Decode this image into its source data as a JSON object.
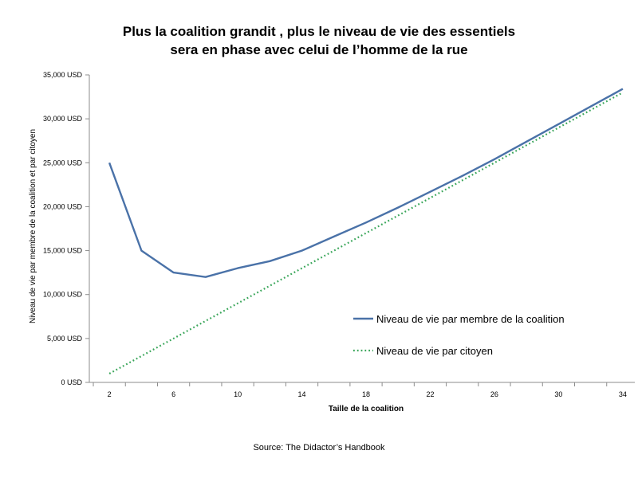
{
  "chart_data": {
    "type": "line",
    "title": [
      "Plus la coalition grandit , plus le niveau de vie des essentiels",
      "sera en phase avec celui de l’homme de la rue"
    ],
    "xlabel": "Taille  de la coalition",
    "ylabel": "Niveau de vie par membre de la coalition et par citoyen",
    "x_ticks": [
      2,
      6,
      10,
      14,
      18,
      22,
      26,
      30,
      34
    ],
    "xlim": [
      0.75,
      35.25
    ],
    "ylim": [
      0,
      35000
    ],
    "y_ticks": [
      0,
      5000,
      10000,
      15000,
      20000,
      25000,
      30000,
      35000
    ],
    "y_tick_labels": [
      "0 USD",
      "5,000 USD",
      "10,000 USD",
      "15,000 USD",
      "20,000 USD",
      "25,000 USD",
      "30,000 USD",
      "35,000 USD"
    ],
    "legend_position": "right",
    "series": [
      {
        "name": "Niveau de vie par membre de la coalition",
        "color": "#4a72a8",
        "style": "solid",
        "x": [
          2,
          4,
          6,
          8,
          10,
          12,
          14,
          16,
          18,
          20,
          22,
          24,
          26,
          28,
          30,
          32,
          34
        ],
        "y": [
          25000,
          15000,
          12500,
          12000,
          13000,
          13800,
          15000,
          16600,
          18200,
          19900,
          21700,
          23500,
          25400,
          27400,
          29400,
          31400,
          33400
        ]
      },
      {
        "name": "Niveau de vie par citoyen",
        "color": "#3aa65a",
        "style": "dotted",
        "x": [
          2,
          34
        ],
        "y": [
          1000,
          33000
        ]
      }
    ]
  },
  "source": "Source: The Didactor’s Handbook"
}
